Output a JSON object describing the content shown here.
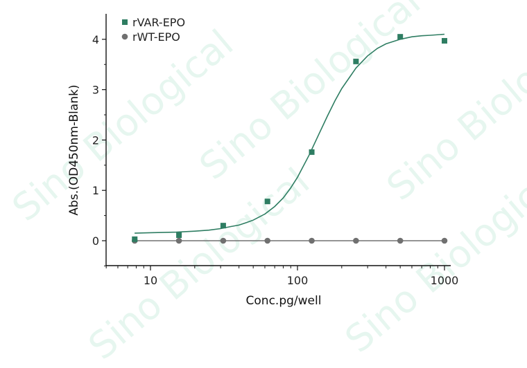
{
  "watermark": "Sino Biological",
  "chart_data": {
    "type": "scatter",
    "title": "",
    "xlabel": "Conc.pg/well",
    "ylabel": "Abs.(OD450nm-Blank)",
    "xscale": "log",
    "xlim": [
      5,
      1100
    ],
    "ylim": [
      -0.5,
      4.4
    ],
    "x_ticks": [
      10,
      100,
      1000
    ],
    "x_tick_labels": [
      "10",
      "100",
      "1000"
    ],
    "y_ticks": [
      0,
      1,
      2,
      3,
      4
    ],
    "y_tick_labels": [
      "0",
      "1",
      "2",
      "3",
      "4"
    ],
    "grid": false,
    "legend_position": "top-left",
    "x": [
      7.8125,
      15.625,
      31.25,
      62.5,
      125,
      250,
      500,
      1000
    ],
    "series": [
      {
        "name": "rVAR-EPO",
        "marker": "square",
        "color": "#2e7d62",
        "values": [
          0.03,
          0.11,
          0.3,
          0.78,
          1.76,
          3.56,
          4.05,
          3.97
        ],
        "fit": "4PL sigmoid",
        "fit_curve": {
          "x": [
            7.8,
            10,
            15,
            20,
            25,
            30,
            35,
            40,
            45,
            50,
            60,
            70,
            80,
            90,
            100,
            120,
            140,
            160,
            180,
            200,
            250,
            300,
            350,
            400,
            500,
            600,
            700,
            800,
            1000
          ],
          "y": [
            0.15,
            0.16,
            0.17,
            0.19,
            0.21,
            0.24,
            0.28,
            0.31,
            0.36,
            0.41,
            0.53,
            0.68,
            0.85,
            1.05,
            1.26,
            1.7,
            2.12,
            2.48,
            2.78,
            3.02,
            3.43,
            3.67,
            3.82,
            3.91,
            4.0,
            4.05,
            4.07,
            4.08,
            4.1
          ]
        }
      },
      {
        "name": "rWT-EPO",
        "marker": "circle",
        "color": "#707070",
        "values": [
          0,
          0,
          0,
          0,
          0,
          0,
          0,
          0
        ],
        "fit": "line"
      }
    ]
  }
}
